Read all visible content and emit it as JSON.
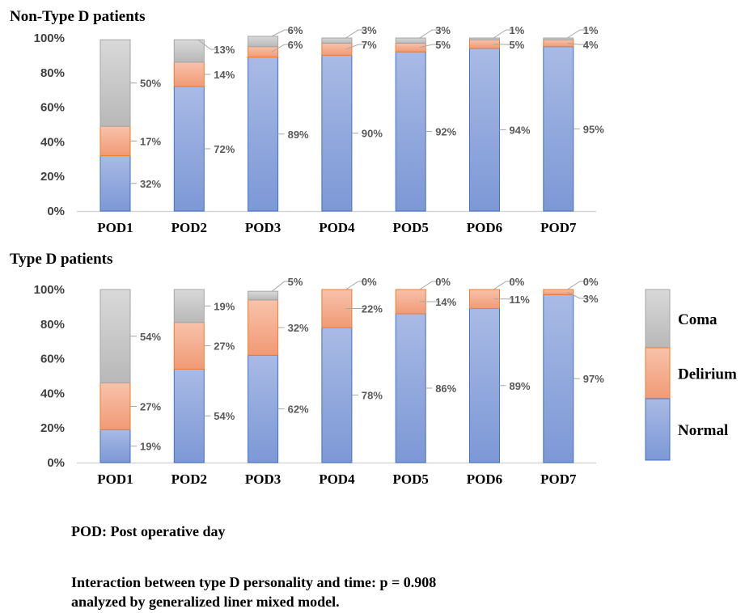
{
  "chart_data": [
    {
      "type": "bar",
      "stacked": true,
      "title": "Non-Type D patients",
      "categories": [
        "POD1",
        "POD2",
        "POD3",
        "POD4",
        "POD5",
        "POD6",
        "POD7"
      ],
      "series": [
        {
          "name": "Normal",
          "values": [
            32,
            72,
            89,
            90,
            92,
            94,
            95
          ]
        },
        {
          "name": "Delirium",
          "values": [
            17,
            14,
            6,
            7,
            5,
            5,
            4
          ]
        },
        {
          "name": "Coma",
          "values": [
            50,
            13,
            6,
            3,
            3,
            1,
            1
          ]
        }
      ],
      "value_labels": {
        "Normal": [
          "32%",
          "72%",
          "89%",
          "90%",
          "92%",
          "94%",
          "95%"
        ],
        "Delirium": [
          "17%",
          "14%",
          "6%",
          "7%",
          "5%",
          "5%",
          "4%"
        ],
        "Coma": [
          "50%",
          "13%",
          "6%",
          "3%",
          "3%",
          "1%",
          "1%"
        ]
      },
      "yticks": [
        "0%",
        "20%",
        "40%",
        "60%",
        "80%",
        "100%"
      ],
      "ylim": [
        0,
        100
      ]
    },
    {
      "type": "bar",
      "stacked": true,
      "title": "Type D patients",
      "categories": [
        "POD1",
        "POD2",
        "POD3",
        "POD4",
        "POD5",
        "POD6",
        "POD7"
      ],
      "series": [
        {
          "name": "Normal",
          "values": [
            19,
            54,
            62,
            78,
            86,
            89,
            97
          ]
        },
        {
          "name": "Delirium",
          "values": [
            27,
            27,
            32,
            22,
            14,
            11,
            3
          ]
        },
        {
          "name": "Coma",
          "values": [
            54,
            19,
            5,
            0,
            0,
            0,
            0
          ]
        }
      ],
      "value_labels": {
        "Normal": [
          "19%",
          "54%",
          "62%",
          "78%",
          "86%",
          "89%",
          "97%"
        ],
        "Delirium": [
          "27%",
          "27%",
          "32%",
          "22%",
          "14%",
          "11%",
          "3%"
        ],
        "Coma": [
          "54%",
          "19%",
          "5%",
          "0%",
          "0%",
          "0%",
          "0%"
        ]
      },
      "yticks": [
        "0%",
        "20%",
        "40%",
        "60%",
        "80%",
        "100%"
      ],
      "ylim": [
        0,
        100
      ]
    }
  ],
  "legend": {
    "placement": "right",
    "items": [
      {
        "name": "Coma"
      },
      {
        "name": "Delirium"
      },
      {
        "name": "Normal"
      }
    ]
  },
  "colors": {
    "Normal": "#8fa6d9",
    "Delirium": "#f4a98a",
    "Coma": "#c6c6c6",
    "Normal_border": "#4472c4",
    "Delirium_border": "#ed7d31",
    "Coma_border": "#a5a5a5"
  },
  "notes": {
    "pod_definition": "POD: Post operative day",
    "interaction_line1": "Interaction between type D personality and time: p = 0.908",
    "interaction_line2": "analyzed by generalized liner mixed model."
  }
}
